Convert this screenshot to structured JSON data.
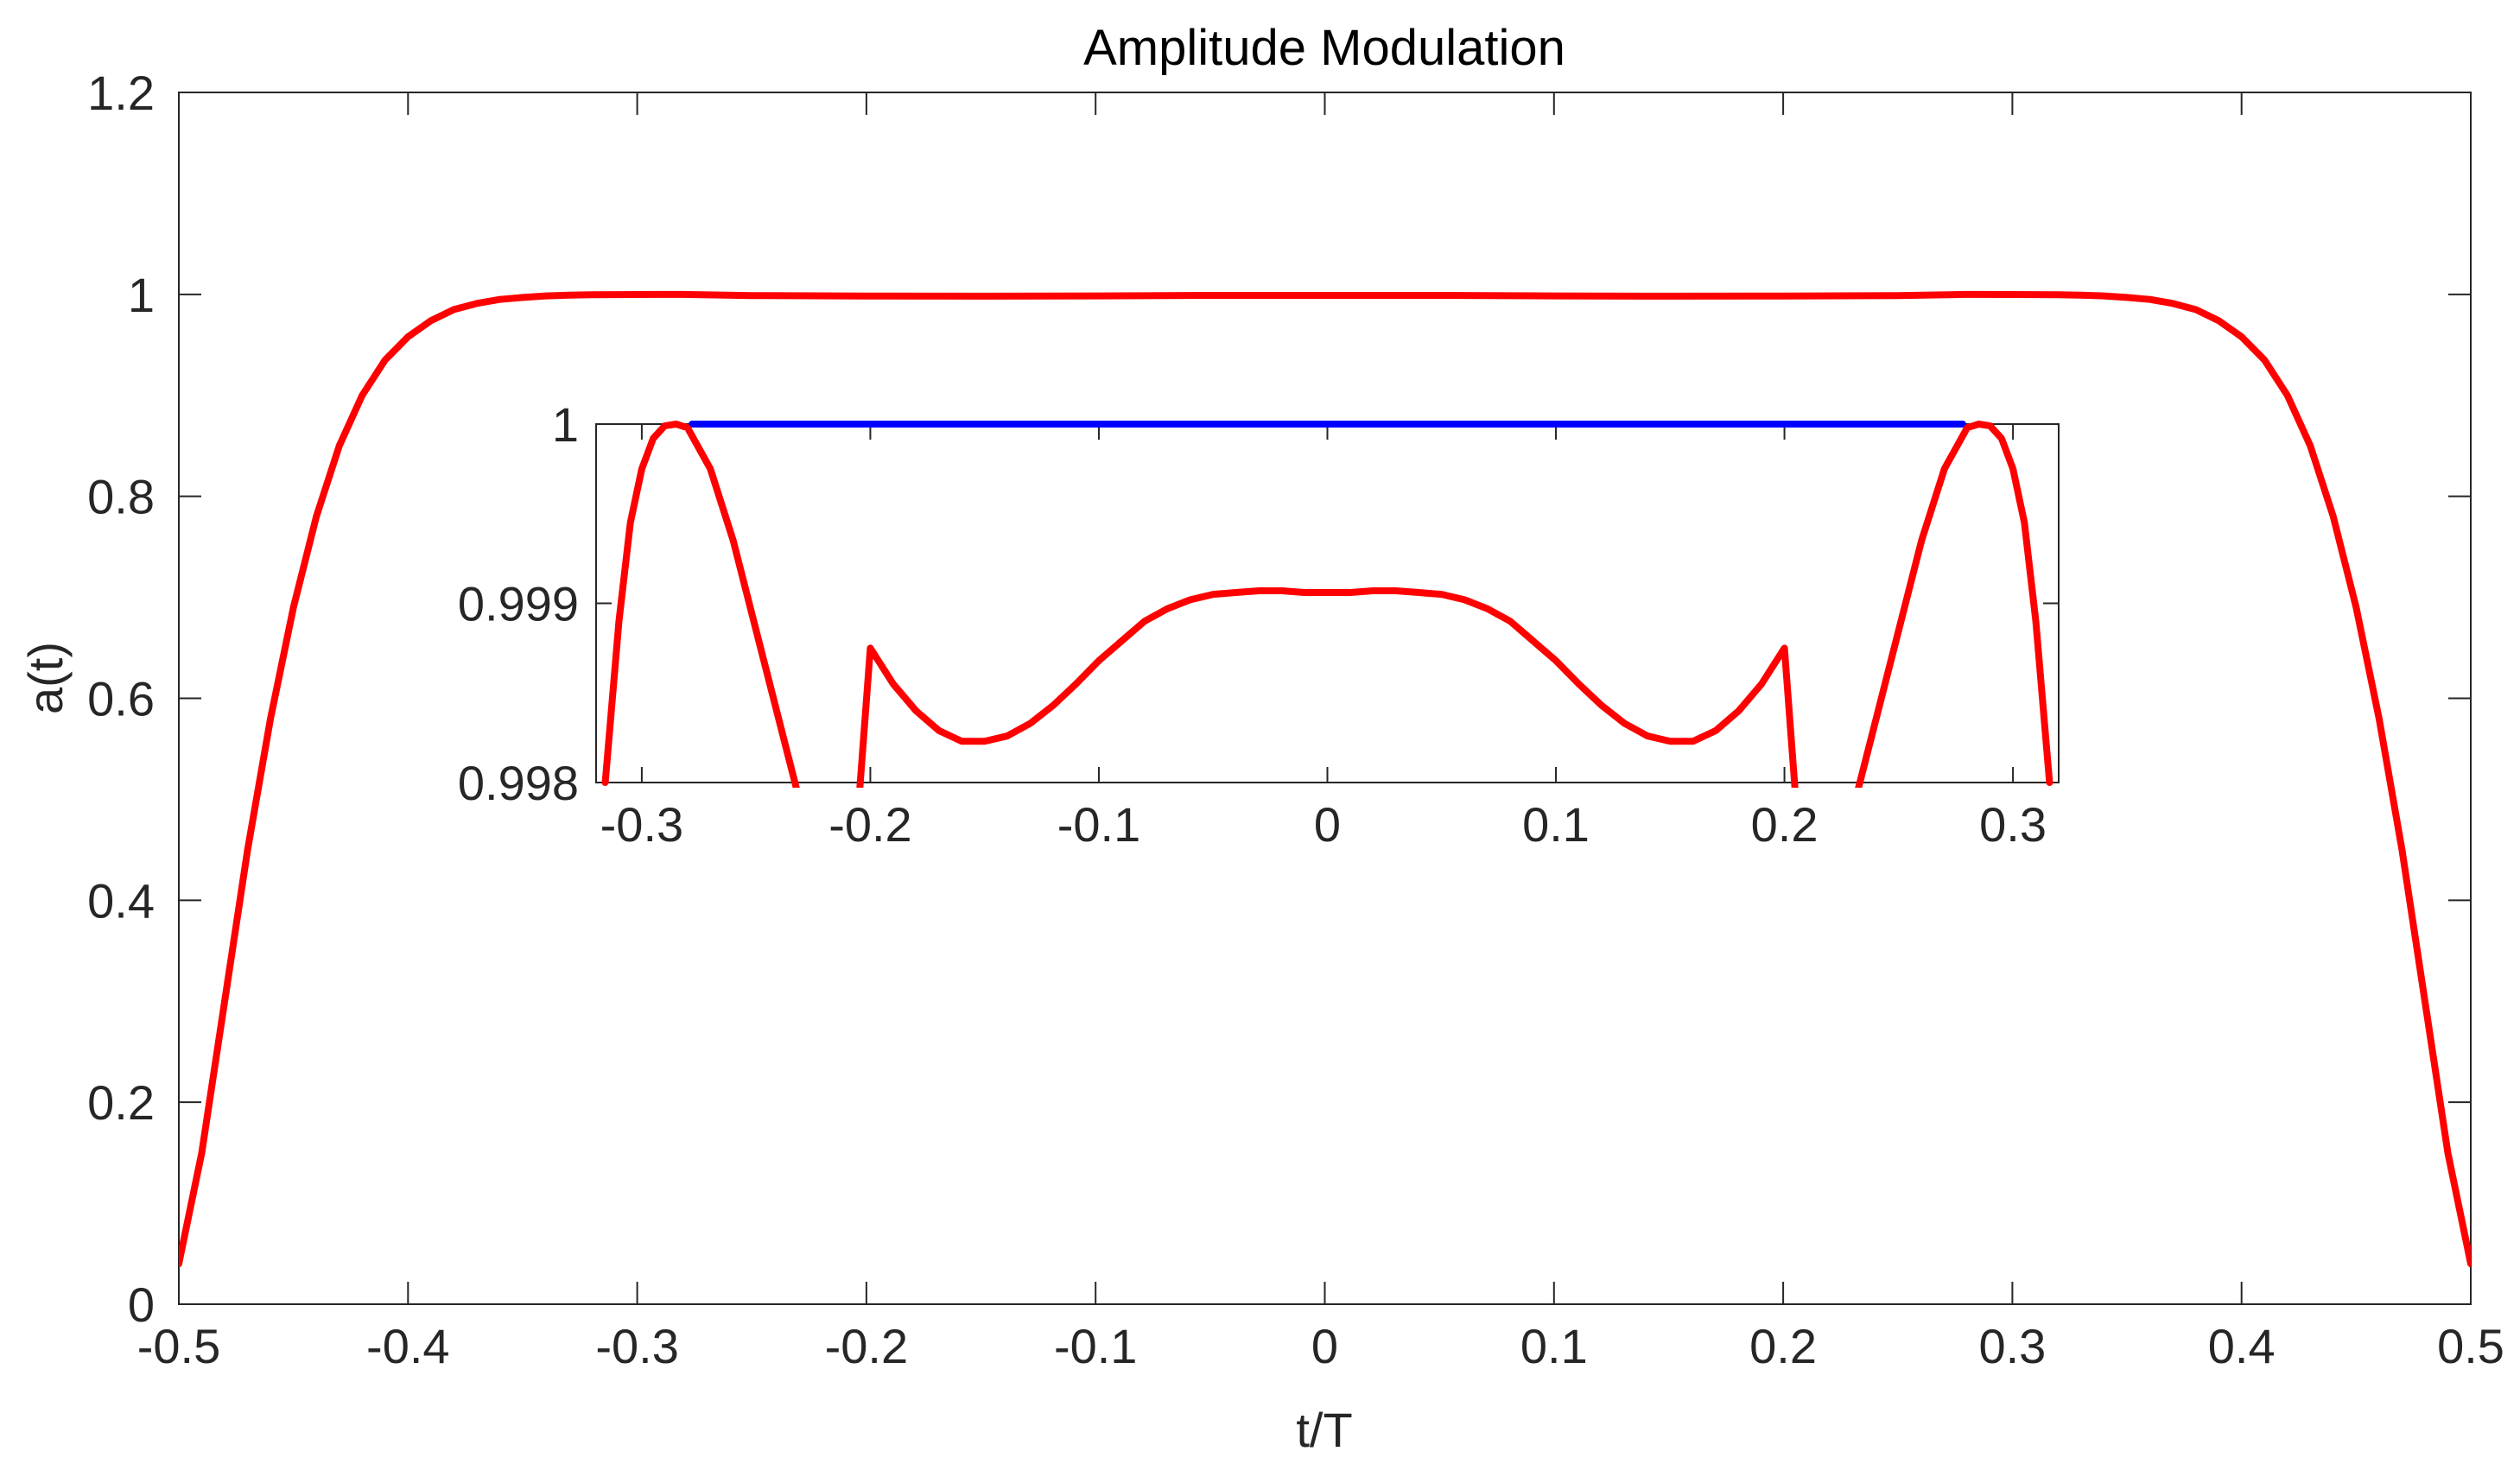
{
  "chart_data": [
    {
      "id": "main",
      "type": "line",
      "title": "Amplitude Modulation",
      "xlabel": "t/T",
      "ylabel": "a(t)",
      "xlim": [
        -0.5,
        0.5
      ],
      "ylim": [
        0,
        1.2
      ],
      "xticks": [
        -0.5,
        -0.4,
        -0.3,
        -0.2,
        -0.1,
        0,
        0.1,
        0.2,
        0.3,
        0.4,
        0.5
      ],
      "xtick_labels": [
        "-0.5",
        "-0.4",
        "-0.3",
        "-0.2",
        "-0.1",
        "0",
        "0.1",
        "0.2",
        "0.3",
        "0.4",
        "0.5"
      ],
      "yticks": [
        0,
        0.2,
        0.4,
        0.6,
        0.8,
        1,
        1.2
      ],
      "ytick_labels": [
        "0",
        "0.2",
        "0.4",
        "0.6",
        "0.8",
        "1",
        "1.2"
      ],
      "grid": false,
      "box": true,
      "series": [
        {
          "color": "#ff0000",
          "x": [
            -0.5,
            -0.49,
            -0.48,
            -0.47,
            -0.46,
            -0.45,
            -0.44,
            -0.43,
            -0.42,
            -0.41,
            -0.4,
            -0.39,
            -0.38,
            -0.37,
            -0.36,
            -0.35,
            -0.34,
            -0.33,
            -0.32,
            -0.31,
            -0.3,
            -0.28,
            -0.25,
            -0.2,
            -0.15,
            -0.1,
            -0.05,
            0,
            0.05,
            0.1,
            0.15,
            0.2,
            0.25,
            0.28,
            0.3,
            0.31,
            0.32,
            0.33,
            0.34,
            0.35,
            0.36,
            0.37,
            0.38,
            0.39,
            0.4,
            0.41,
            0.42,
            0.43,
            0.44,
            0.45,
            0.46,
            0.47,
            0.48,
            0.49,
            0.5
          ],
          "y": [
            0.04,
            0.15,
            0.3,
            0.45,
            0.58,
            0.69,
            0.78,
            0.85,
            0.9,
            0.935,
            0.958,
            0.974,
            0.985,
            0.991,
            0.995,
            0.997,
            0.9985,
            0.9992,
            0.9996,
            0.9998,
            0.9999,
            0.99995,
            0.9988,
            0.9984,
            0.99825,
            0.9985,
            0.999,
            0.999,
            0.999,
            0.9985,
            0.99825,
            0.9984,
            0.9988,
            0.99995,
            0.9999,
            0.9998,
            0.9996,
            0.9992,
            0.9985,
            0.997,
            0.995,
            0.991,
            0.985,
            0.974,
            0.958,
            0.935,
            0.9,
            0.85,
            0.78,
            0.69,
            0.58,
            0.45,
            0.3,
            0.15,
            0.04
          ]
        }
      ]
    },
    {
      "id": "inset",
      "type": "line",
      "title": "",
      "xlabel": "",
      "ylabel": "",
      "xlim": [
        -0.32,
        0.32
      ],
      "ylim": [
        0.998,
        1
      ],
      "xticks": [
        -0.3,
        -0.2,
        -0.1,
        0,
        0.1,
        0.2,
        0.3
      ],
      "xtick_labels": [
        "-0.3",
        "-0.2",
        "-0.1",
        "0",
        "0.1",
        "0.2",
        "0.3"
      ],
      "yticks": [
        0.998,
        0.999,
        1
      ],
      "ytick_labels": [
        "0.998",
        "0.999",
        "1"
      ],
      "grid": false,
      "box": true,
      "series": [
        {
          "color": "#0000ff",
          "x": [
            -0.278,
            0.278
          ],
          "y": [
            1,
            1
          ]
        },
        {
          "color": "#ff0000",
          "x": [
            -0.316,
            -0.31,
            -0.305,
            -0.3,
            -0.295,
            -0.29,
            -0.285,
            -0.28,
            -0.27,
            -0.26,
            -0.25,
            -0.24,
            -0.23,
            -0.22,
            -0.21,
            -0.2,
            -0.19,
            -0.18,
            -0.17,
            -0.16,
            -0.15,
            -0.14,
            -0.13,
            -0.12,
            -0.11,
            -0.1,
            -0.09,
            -0.08,
            -0.07,
            -0.06,
            -0.05,
            -0.04,
            -0.03,
            -0.02,
            -0.01,
            0,
            0.01,
            0.02,
            0.03,
            0.04,
            0.05,
            0.06,
            0.07,
            0.08,
            0.09,
            0.1,
            0.11,
            0.12,
            0.13,
            0.14,
            0.15,
            0.16,
            0.17,
            0.18,
            0.19,
            0.2,
            0.21,
            0.22,
            0.23,
            0.24,
            0.25,
            0.26,
            0.27,
            0.28,
            0.285,
            0.29,
            0.295,
            0.3,
            0.305,
            0.31,
            0.316
          ],
          "y": [
            0.998,
            0.9989,
            0.99945,
            0.99975,
            0.99992,
            0.99999,
            1.0,
            0.99998,
            0.99975,
            0.99935,
            0.99885,
            0.99835,
            0.99785,
            0.9974,
            0.99705,
            0.99875,
            0.99855,
            0.9984,
            0.99829,
            0.99823,
            0.99823,
            0.99826,
            0.99833,
            0.99843,
            0.99855,
            0.99868,
            0.99879,
            0.9989,
            0.99897,
            0.99902,
            0.99905,
            0.99906,
            0.99907,
            0.99907,
            0.99906,
            0.99906,
            0.99906,
            0.99907,
            0.99907,
            0.99906,
            0.99905,
            0.99902,
            0.99897,
            0.9989,
            0.99879,
            0.99868,
            0.99855,
            0.99843,
            0.99833,
            0.99826,
            0.99823,
            0.99823,
            0.99829,
            0.9984,
            0.99855,
            0.99875,
            0.99705,
            0.9974,
            0.99785,
            0.99835,
            0.99885,
            0.99935,
            0.99975,
            0.99998,
            1.0,
            0.99999,
            0.99992,
            0.99975,
            0.99945,
            0.9989,
            0.998
          ]
        }
      ]
    }
  ]
}
